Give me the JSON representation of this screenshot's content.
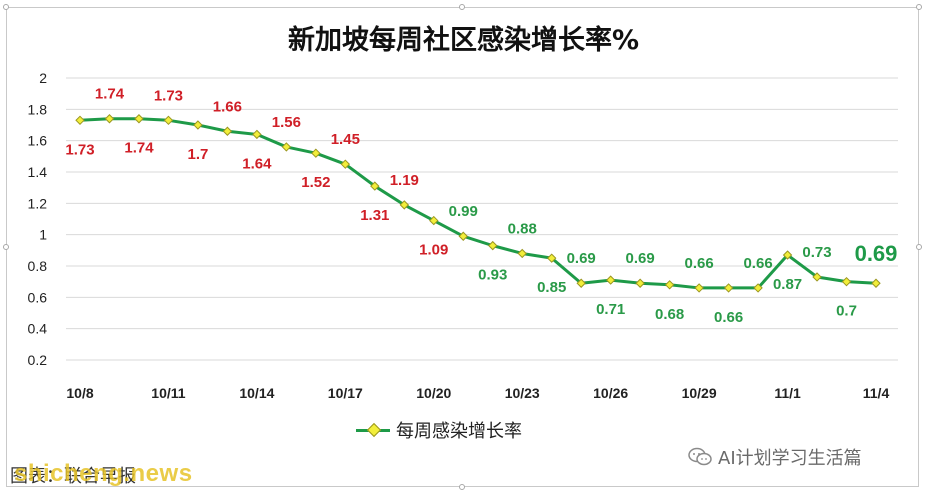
{
  "chart_data": {
    "type": "line",
    "title": "新加坡每周社区感染增长率%",
    "categories": [
      "10/8",
      "10/9",
      "10/10",
      "10/11",
      "10/12",
      "10/13",
      "10/14",
      "10/15",
      "10/16",
      "10/17",
      "10/18",
      "10/19",
      "10/20",
      "10/21",
      "10/22",
      "10/23",
      "10/24",
      "10/25",
      "10/26",
      "10/27",
      "10/28",
      "10/29",
      "10/30",
      "10/31",
      "11/1",
      "11/2",
      "11/3",
      "11/4"
    ],
    "x_tick_labels": [
      "10/8",
      "10/11",
      "10/14",
      "10/17",
      "10/20",
      "10/23",
      "10/26",
      "10/29",
      "11/1",
      "11/4"
    ],
    "y_tick_labels": [
      "0.2",
      "0.4",
      "0.6",
      "0.8",
      "1",
      "1.2",
      "1.4",
      "1.6",
      "1.8",
      "2"
    ],
    "ylim": [
      0.2,
      2
    ],
    "grid": true,
    "legend_position": "bottom",
    "series": [
      {
        "name": "每周感染增长率",
        "values": [
          1.73,
          1.74,
          1.74,
          1.73,
          1.7,
          1.66,
          1.64,
          1.56,
          1.52,
          1.45,
          1.31,
          1.19,
          1.09,
          0.99,
          0.93,
          0.88,
          0.85,
          0.69,
          0.71,
          0.69,
          0.68,
          0.66,
          0.66,
          0.66,
          0.87,
          0.73,
          0.7,
          0.69
        ],
        "labels": [
          "1.73",
          "1.74",
          "1.74",
          "1.73",
          "1.7",
          "1.66",
          "1.64",
          "1.56",
          "1.52",
          "1.45",
          "1.31",
          "1.19",
          "1.09",
          "0.99",
          "0.93",
          "0.88",
          "0.85",
          "0.69",
          "0.71",
          "0.69",
          "0.68",
          "0.66",
          "0.66",
          "0.66",
          "0.87",
          "0.73",
          "0.7",
          "0.69"
        ],
        "label_sides": [
          "below",
          "above",
          "below",
          "above",
          "below",
          "above",
          "below",
          "above",
          "below",
          "above",
          "below",
          "above",
          "below",
          "above",
          "below",
          "above",
          "below",
          "above",
          "below",
          "above",
          "below",
          "above",
          "below",
          "above",
          "below",
          "above",
          "below",
          "above"
        ],
        "labels_shown": [
          true,
          true,
          true,
          true,
          true,
          true,
          true,
          true,
          true,
          true,
          true,
          true,
          true,
          true,
          true,
          true,
          true,
          true,
          true,
          true,
          true,
          true,
          true,
          true,
          true,
          true,
          true,
          true
        ],
        "colors": {
          "line": "#1e9a48",
          "marker": "#f2ee3a",
          "marker_border": "#9a9620",
          "label_high": "#d01f27",
          "label_low": "#2a9a48",
          "label_last": "#1e9a48"
        }
      }
    ]
  },
  "credit": {
    "text": "AI计划学习生活篇",
    "icon": "wechat-icon"
  },
  "source": {
    "text": "图表：联合早报"
  },
  "watermark": {
    "text": "shicheng.news"
  }
}
